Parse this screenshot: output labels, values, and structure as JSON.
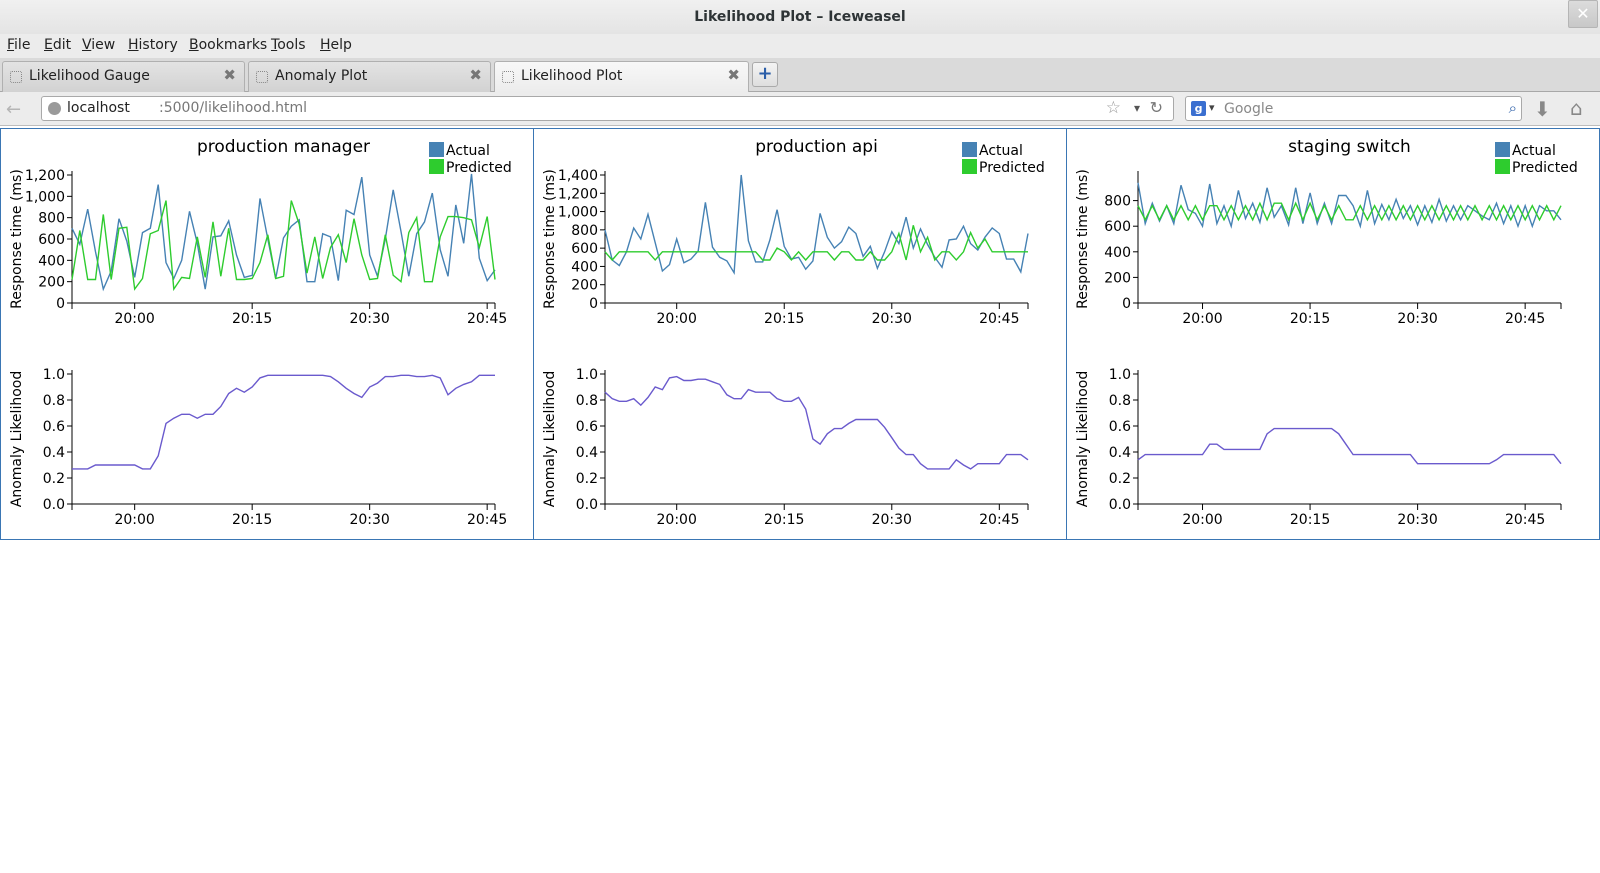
{
  "window": {
    "title": "Likelihood Plot – Iceweasel",
    "close_glyph": "✕"
  },
  "menu": [
    "File",
    "Edit",
    "View",
    "History",
    "Bookmarks",
    "Tools",
    "Help"
  ],
  "tabs": [
    {
      "label": "Likelihood Gauge",
      "active": false
    },
    {
      "label": "Anomaly Plot",
      "active": false
    },
    {
      "label": "Likelihood Plot",
      "active": true
    }
  ],
  "tab_close_glyph": "✖",
  "newtab_glyph": "+",
  "url": {
    "host": "localhost",
    "path": ":5000/likelihood.html"
  },
  "search": {
    "engine": "Google",
    "engine_glyph": "g",
    "placeholder": "Google",
    "value": ""
  },
  "icons": {
    "back": "back-arrow-icon",
    "star": "bookmark-star-icon",
    "reload": "reload-icon",
    "search": "magnifier-icon",
    "downloads": "download-arrow-icon",
    "home": "home-icon",
    "back_glyph": "←",
    "star_glyph": "☆",
    "dropdown_glyph": "▾",
    "reload_glyph": "↻",
    "search_glyph": "⌕",
    "downloads_glyph": "⬇",
    "home_glyph": "⌂"
  },
  "colors": {
    "actual": "#4682b4",
    "predicted": "#2ecc2e",
    "likelihood": "#6a5acd",
    "panel_border": "#3a76b4"
  },
  "chart_data": [
    {
      "type": "line",
      "title": "production manager",
      "legend": [
        "Actual",
        "Predicted"
      ],
      "legend_position": "top-right",
      "top": {
        "ylabel": "Response time (ms)",
        "ylim": [
          0,
          1200
        ],
        "yticks": [
          0,
          200,
          400,
          600,
          800,
          1000,
          1200
        ],
        "ytick_labels": [
          "0",
          "200",
          "400",
          "600",
          "800",
          "1,000",
          "1,200"
        ],
        "series": [
          {
            "name": "Actual",
            "values": [
              700,
              550,
              880,
              480,
              130,
              300,
              790,
              580,
              240,
              660,
              700,
              1110,
              380,
              230,
              400,
              860,
              560,
              130,
              620,
              630,
              770,
              450,
              240,
              260,
              980,
              600,
              230,
              610,
              720,
              780,
              200,
              200,
              650,
              620,
              210,
              870,
              830,
              1180,
              450,
              250,
              600,
              1060,
              670,
              250,
              650,
              760,
              1030,
              500,
              250,
              920,
              560,
              1210,
              420,
              210,
              310
            ]
          },
          {
            "name": "Predicted",
            "values": [
              220,
              680,
              220,
              220,
              830,
              220,
              700,
              710,
              130,
              230,
              650,
              680,
              960,
              130,
              240,
              230,
              620,
              240,
              760,
              250,
              700,
              220,
              220,
              230,
              380,
              640,
              230,
              250,
              960,
              740,
              280,
              620,
              230,
              520,
              640,
              380,
              790,
              450,
              220,
              230,
              640,
              260,
              200,
              660,
              800,
              200,
              200,
              620,
              810,
              810,
              800,
              780,
              520,
              810,
              220
            ]
          }
        ]
      },
      "bottom": {
        "ylabel": "Anomaly Likelihood",
        "ylim": [
          0,
          1.0
        ],
        "yticks": [
          0,
          0.2,
          0.4,
          0.6,
          0.8,
          1.0
        ],
        "ytick_labels": [
          "0.0",
          "0.2",
          "0.4",
          "0.6",
          "0.8",
          "1.0"
        ],
        "series": [
          {
            "name": "",
            "values": [
              0.27,
              0.27,
              0.27,
              0.3,
              0.3,
              0.3,
              0.3,
              0.3,
              0.3,
              0.27,
              0.27,
              0.37,
              0.62,
              0.66,
              0.69,
              0.69,
              0.66,
              0.69,
              0.69,
              0.75,
              0.85,
              0.89,
              0.86,
              0.9,
              0.97,
              0.99,
              0.99,
              0.99,
              0.99,
              0.99,
              0.99,
              0.99,
              0.99,
              0.98,
              0.94,
              0.89,
              0.85,
              0.82,
              0.9,
              0.93,
              0.98,
              0.98,
              0.99,
              0.99,
              0.98,
              0.98,
              0.99,
              0.97,
              0.84,
              0.89,
              0.92,
              0.94,
              0.99,
              0.99,
              0.99
            ]
          }
        ]
      },
      "x": {
        "ticks": [
          "20:00",
          "20:15",
          "20:30",
          "20:45"
        ],
        "tick_index": [
          8,
          23,
          38,
          53
        ]
      }
    },
    {
      "type": "line",
      "title": "production api",
      "legend": [
        "Actual",
        "Predicted"
      ],
      "legend_position": "top-right",
      "top": {
        "ylabel": "Response time (ms)",
        "ylim": [
          0,
          1400
        ],
        "yticks": [
          0,
          200,
          400,
          600,
          800,
          1000,
          1200,
          1400
        ],
        "ytick_labels": [
          "0",
          "200",
          "400",
          "600",
          "800",
          "1,000",
          "1,200",
          "1,400"
        ],
        "series": [
          {
            "name": "Actual",
            "values": [
              800,
              470,
              410,
              560,
              820,
              700,
              970,
              660,
              350,
              420,
              700,
              440,
              480,
              570,
              1100,
              610,
              500,
              460,
              330,
              1400,
              680,
              450,
              450,
              690,
              1020,
              620,
              480,
              500,
              370,
              460,
              980,
              720,
              600,
              670,
              830,
              760,
              510,
              620,
              380,
              560,
              780,
              650,
              940,
              600,
              810,
              640,
              500,
              390,
              690,
              700,
              840,
              650,
              580,
              720,
              820,
              760,
              480,
              480,
              340,
              760
            ]
          },
          {
            "name": "Predicted",
            "values": [
              560,
              470,
              560,
              560,
              560,
              560,
              560,
              470,
              560,
              560,
              560,
              560,
              560,
              560,
              560,
              560,
              560,
              560,
              560,
              560,
              560,
              560,
              470,
              470,
              600,
              560,
              470,
              560,
              470,
              560,
              560,
              560,
              470,
              560,
              560,
              470,
              470,
              560,
              470,
              470,
              560,
              760,
              470,
              850,
              560,
              720,
              470,
              560,
              560,
              470,
              560,
              770,
              600,
              700,
              560,
              560,
              560,
              560,
              560,
              560
            ]
          }
        ]
      },
      "bottom": {
        "ylabel": "Anomaly Likelihood",
        "ylim": [
          0,
          1.0
        ],
        "yticks": [
          0,
          0.2,
          0.4,
          0.6,
          0.8,
          1.0
        ],
        "ytick_labels": [
          "0.0",
          "0.2",
          "0.4",
          "0.6",
          "0.8",
          "1.0"
        ],
        "series": [
          {
            "name": "",
            "values": [
              0.86,
              0.81,
              0.79,
              0.79,
              0.81,
              0.76,
              0.82,
              0.9,
              0.88,
              0.97,
              0.98,
              0.95,
              0.95,
              0.96,
              0.96,
              0.94,
              0.92,
              0.84,
              0.81,
              0.81,
              0.88,
              0.86,
              0.86,
              0.86,
              0.81,
              0.79,
              0.79,
              0.82,
              0.73,
              0.5,
              0.46,
              0.54,
              0.58,
              0.58,
              0.62,
              0.65,
              0.65,
              0.65,
              0.65,
              0.59,
              0.51,
              0.43,
              0.38,
              0.38,
              0.31,
              0.27,
              0.27,
              0.27,
              0.27,
              0.34,
              0.3,
              0.27,
              0.31,
              0.31,
              0.31,
              0.31,
              0.38,
              0.38,
              0.38,
              0.34
            ]
          }
        ]
      },
      "x": {
        "ticks": [
          "20:00",
          "20:15",
          "20:30",
          "20:45"
        ],
        "tick_index": [
          10,
          25,
          40,
          55
        ]
      }
    },
    {
      "type": "line",
      "title": "staging switch",
      "legend": [
        "Actual",
        "Predicted"
      ],
      "legend_position": "top-right",
      "top": {
        "ylabel": "Response time (ms)",
        "ylim": [
          0,
          1000
        ],
        "yticks": [
          0,
          200,
          400,
          600,
          800
        ],
        "ytick_labels": [
          "0",
          "200",
          "400",
          "600",
          "800"
        ],
        "series": [
          {
            "name": "Actual",
            "values": [
              940,
              620,
              780,
              640,
              760,
              620,
              920,
              730,
              700,
              600,
              930,
              620,
              760,
              600,
              880,
              660,
              780,
              630,
              900,
              670,
              760,
              610,
              900,
              620,
              860,
              620,
              780,
              620,
              840,
              840,
              760,
              600,
              880,
              620,
              770,
              650,
              810,
              660,
              760,
              610,
              760,
              630,
              810,
              640,
              760,
              650,
              760,
              720,
              680,
              650,
              780,
              620,
              760,
              600,
              760,
              600,
              760,
              720,
              720,
              650
            ]
          },
          {
            "name": "Predicted",
            "values": [
              760,
              650,
              760,
              650,
              760,
              650,
              760,
              650,
              760,
              650,
              760,
              760,
              650,
              760,
              650,
              760,
              650,
              780,
              650,
              780,
              780,
              650,
              780,
              650,
              780,
              650,
              760,
              650,
              760,
              650,
              650,
              760,
              650,
              760,
              650,
              760,
              650,
              760,
              650,
              760,
              650,
              760,
              650,
              760,
              650,
              760,
              650,
              760,
              650,
              760,
              650,
              760,
              650,
              760,
              650,
              760,
              650,
              760,
              650,
              760
            ]
          }
        ]
      },
      "bottom": {
        "ylabel": "Anomaly Likelihood",
        "ylim": [
          0,
          1.0
        ],
        "yticks": [
          0,
          0.2,
          0.4,
          0.6,
          0.8,
          1.0
        ],
        "ytick_labels": [
          "0.0",
          "0.2",
          "0.4",
          "0.6",
          "0.8",
          "1.0"
        ],
        "series": [
          {
            "name": "",
            "values": [
              0.34,
              0.38,
              0.38,
              0.38,
              0.38,
              0.38,
              0.38,
              0.38,
              0.38,
              0.38,
              0.46,
              0.46,
              0.42,
              0.42,
              0.42,
              0.42,
              0.42,
              0.42,
              0.54,
              0.58,
              0.58,
              0.58,
              0.58,
              0.58,
              0.58,
              0.58,
              0.58,
              0.58,
              0.54,
              0.46,
              0.38,
              0.38,
              0.38,
              0.38,
              0.38,
              0.38,
              0.38,
              0.38,
              0.38,
              0.31,
              0.31,
              0.31,
              0.31,
              0.31,
              0.31,
              0.31,
              0.31,
              0.31,
              0.31,
              0.31,
              0.34,
              0.38,
              0.38,
              0.38,
              0.38,
              0.38,
              0.38,
              0.38,
              0.38,
              0.31
            ]
          }
        ]
      },
      "x": {
        "ticks": [
          "20:00",
          "20:15",
          "20:30",
          "20:45"
        ],
        "tick_index": [
          9,
          24,
          39,
          54
        ]
      }
    }
  ]
}
